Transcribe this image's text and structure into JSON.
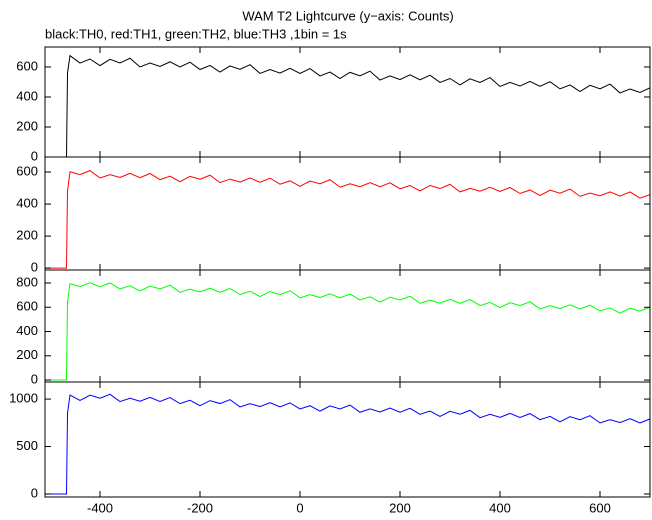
{
  "title": "WAM T2 Lightcurve (y−axis: Counts)",
  "subtitle": "black:TH0, red:TH1, green:TH2, blue:TH3 ,1bin = 1s",
  "chart_data": [
    {
      "type": "line",
      "x": [
        -510,
        -467,
        -465,
        -460,
        -440,
        -420,
        -400,
        -380,
        -360,
        -340,
        -320,
        -300,
        -280,
        -260,
        -240,
        -220,
        -200,
        -180,
        -160,
        -140,
        -120,
        -100,
        -80,
        -60,
        -40,
        -20,
        0,
        20,
        40,
        60,
        80,
        100,
        120,
        140,
        160,
        180,
        200,
        220,
        240,
        260,
        280,
        300,
        320,
        340,
        360,
        380,
        400,
        420,
        440,
        460,
        480,
        500,
        520,
        540,
        560,
        580,
        600,
        620,
        640,
        660,
        680,
        700
      ],
      "series": [
        {
          "color": "#000000",
          "values": [
            0,
            0,
            560,
            675,
            626,
            653,
            609,
            651,
            627,
            658,
            600,
            626,
            603,
            634,
            600,
            632,
            583,
            610,
            566,
            607,
            584,
            615,
            557,
            583,
            559,
            591,
            557,
            589,
            540,
            566,
            523,
            564,
            541,
            572,
            513,
            540,
            516,
            548,
            514,
            545,
            497,
            523,
            480,
            521,
            497,
            529,
            470,
            497,
            473,
            504,
            471,
            502,
            454,
            480,
            436,
            478,
            454,
            486,
            427,
            453,
            430,
            461
          ]
        }
      ],
      "xlim": [
        -510,
        700
      ],
      "ylim": [
        0,
        733
      ],
      "yticks": [
        0,
        200,
        400,
        600
      ]
    },
    {
      "type": "line",
      "x": [
        -510,
        -467,
        -465,
        -460,
        -440,
        -420,
        -400,
        -380,
        -360,
        -340,
        -320,
        -300,
        -280,
        -260,
        -240,
        -220,
        -200,
        -180,
        -160,
        -140,
        -120,
        -100,
        -80,
        -60,
        -40,
        -20,
        0,
        20,
        40,
        60,
        80,
        100,
        120,
        140,
        160,
        180,
        200,
        220,
        240,
        260,
        280,
        300,
        320,
        340,
        360,
        380,
        400,
        420,
        440,
        460,
        480,
        500,
        520,
        540,
        560,
        580,
        600,
        620,
        640,
        660,
        680,
        700
      ],
      "series": [
        {
          "color": "#ff0000",
          "values": [
            0,
            0,
            480,
            602,
            584,
            609,
            563,
            584,
            566,
            592,
            565,
            591,
            552,
            574,
            540,
            573,
            555,
            580,
            534,
            556,
            537,
            563,
            536,
            562,
            524,
            545,
            511,
            544,
            526,
            552,
            505,
            527,
            508,
            534,
            508,
            533,
            495,
            516,
            482,
            516,
            497,
            523,
            476,
            498,
            480,
            505,
            479,
            504,
            466,
            488,
            453,
            487,
            468,
            494,
            448,
            469,
            451,
            476,
            450,
            476,
            437,
            459
          ]
        }
      ],
      "xlim": [
        -510,
        700
      ],
      "ylim": [
        -12,
        694
      ],
      "yticks": [
        0,
        200,
        400,
        600
      ]
    },
    {
      "type": "line",
      "x": [
        -510,
        -467,
        -465,
        -460,
        -440,
        -420,
        -400,
        -380,
        -360,
        -340,
        -320,
        -300,
        -280,
        -260,
        -240,
        -220,
        -200,
        -180,
        -160,
        -140,
        -120,
        -100,
        -80,
        -60,
        -40,
        -20,
        0,
        20,
        40,
        60,
        80,
        100,
        120,
        140,
        160,
        180,
        200,
        220,
        240,
        260,
        280,
        300,
        320,
        340,
        360,
        380,
        400,
        420,
        440,
        460,
        480,
        500,
        520,
        540,
        560,
        580,
        600,
        620,
        640,
        660,
        680,
        700
      ],
      "series": [
        {
          "color": "#00ff00",
          "values": [
            0,
            0,
            640,
            795,
            771,
            802,
            769,
            800,
            751,
            777,
            733,
            775,
            751,
            782,
            723,
            749,
            726,
            757,
            723,
            754,
            705,
            732,
            688,
            729,
            705,
            736,
            678,
            704,
            680,
            711,
            677,
            709,
            660,
            686,
            642,
            683,
            660,
            691,
            632,
            658,
            634,
            666,
            632,
            663,
            614,
            640,
            597,
            638,
            614,
            645,
            586,
            613,
            589,
            620,
            586,
            617,
            569,
            595,
            551,
            592,
            568,
            600
          ]
        }
      ],
      "xlim": [
        -510,
        700
      ],
      "ylim": [
        -16,
        907
      ],
      "yticks": [
        0,
        200,
        400,
        600,
        800
      ]
    },
    {
      "type": "line",
      "x": [
        -510,
        -467,
        -465,
        -460,
        -440,
        -420,
        -400,
        -380,
        -360,
        -340,
        -320,
        -300,
        -280,
        -260,
        -240,
        -220,
        -200,
        -180,
        -160,
        -140,
        -120,
        -100,
        -80,
        -60,
        -40,
        -20,
        0,
        20,
        40,
        60,
        80,
        100,
        120,
        140,
        160,
        180,
        200,
        220,
        240,
        260,
        280,
        300,
        320,
        340,
        360,
        380,
        400,
        420,
        440,
        460,
        480,
        500,
        520,
        540,
        560,
        580,
        600,
        620,
        640,
        660,
        680,
        700
      ],
      "series": [
        {
          "color": "#0000ff",
          "values": [
            0,
            0,
            850,
            1043,
            986,
            1041,
            1009,
            1050,
            974,
            1009,
            977,
            1018,
            975,
            1016,
            952,
            987,
            930,
            984,
            953,
            994,
            917,
            952,
            921,
            962,
            918,
            960,
            896,
            930,
            873,
            928,
            896,
            937,
            861,
            896,
            864,
            906,
            862,
            903,
            839,
            874,
            817,
            871,
            840,
            881,
            804,
            840,
            808,
            849,
            806,
            847,
            783,
            817,
            761,
            815,
            783,
            825,
            748,
            783,
            752,
            793,
            749,
            790
          ]
        }
      ],
      "xlim": [
        -510,
        700
      ],
      "ylim": [
        -32,
        1180
      ],
      "yticks": [
        0,
        500,
        1000
      ],
      "xticks": [
        -400,
        -200,
        0,
        200,
        400,
        600
      ]
    }
  ]
}
